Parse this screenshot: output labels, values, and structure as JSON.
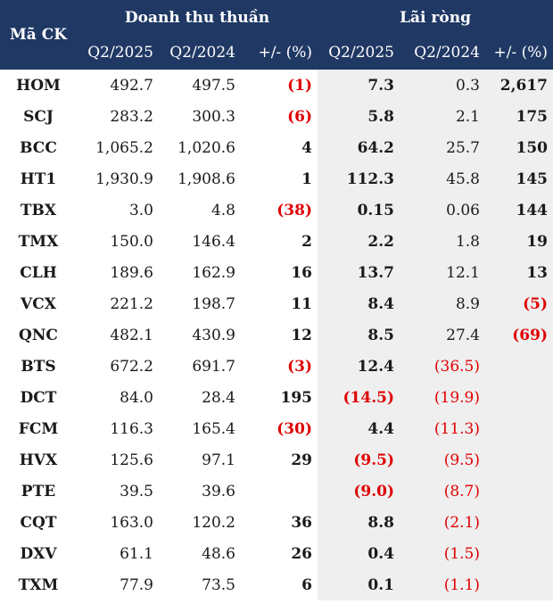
{
  "header": {
    "ticker_label": "Mã CK",
    "revenue_group": "Doanh thu thuần",
    "profit_group": "Lãi ròng",
    "cols": [
      "Q2/2025",
      "Q2/2024",
      "+/- (%)",
      "Q2/2025",
      "Q2/2024",
      "+/- (%)"
    ]
  },
  "colors": {
    "header_bg": "#1f3864",
    "negative": "#e00000",
    "shade": "#efefef"
  },
  "rows": [
    {
      "ticker": "HOM",
      "rev_q2_2025": "492.7",
      "rev_q2_2024": "497.5",
      "rev_change": "(1)",
      "np_q2_2025": "7.3",
      "np_q2_2024": "0.3",
      "np_change": "2,617"
    },
    {
      "ticker": "SCJ",
      "rev_q2_2025": "283.2",
      "rev_q2_2024": "300.3",
      "rev_change": "(6)",
      "np_q2_2025": "5.8",
      "np_q2_2024": "2.1",
      "np_change": "175"
    },
    {
      "ticker": "BCC",
      "rev_q2_2025": "1,065.2",
      "rev_q2_2024": "1,020.6",
      "rev_change": "4",
      "np_q2_2025": "64.2",
      "np_q2_2024": "25.7",
      "np_change": "150"
    },
    {
      "ticker": "HT1",
      "rev_q2_2025": "1,930.9",
      "rev_q2_2024": "1,908.6",
      "rev_change": "1",
      "np_q2_2025": "112.3",
      "np_q2_2024": "45.8",
      "np_change": "145"
    },
    {
      "ticker": "TBX",
      "rev_q2_2025": "3.0",
      "rev_q2_2024": "4.8",
      "rev_change": "(38)",
      "np_q2_2025": "0.15",
      "np_q2_2024": "0.06",
      "np_change": "144"
    },
    {
      "ticker": "TMX",
      "rev_q2_2025": "150.0",
      "rev_q2_2024": "146.4",
      "rev_change": "2",
      "np_q2_2025": "2.2",
      "np_q2_2024": "1.8",
      "np_change": "19"
    },
    {
      "ticker": "CLH",
      "rev_q2_2025": "189.6",
      "rev_q2_2024": "162.9",
      "rev_change": "16",
      "np_q2_2025": "13.7",
      "np_q2_2024": "12.1",
      "np_change": "13"
    },
    {
      "ticker": "VCX",
      "rev_q2_2025": "221.2",
      "rev_q2_2024": "198.7",
      "rev_change": "11",
      "np_q2_2025": "8.4",
      "np_q2_2024": "8.9",
      "np_change": "(5)"
    },
    {
      "ticker": "QNC",
      "rev_q2_2025": "482.1",
      "rev_q2_2024": "430.9",
      "rev_change": "12",
      "np_q2_2025": "8.5",
      "np_q2_2024": "27.4",
      "np_change": "(69)"
    },
    {
      "ticker": "BTS",
      "rev_q2_2025": "672.2",
      "rev_q2_2024": "691.7",
      "rev_change": "(3)",
      "np_q2_2025": "12.4",
      "np_q2_2024": "(36.5)",
      "np_change": ""
    },
    {
      "ticker": "DCT",
      "rev_q2_2025": "84.0",
      "rev_q2_2024": "28.4",
      "rev_change": "195",
      "np_q2_2025": "(14.5)",
      "np_q2_2024": "(19.9)",
      "np_change": ""
    },
    {
      "ticker": "FCM",
      "rev_q2_2025": "116.3",
      "rev_q2_2024": "165.4",
      "rev_change": "(30)",
      "np_q2_2025": "4.4",
      "np_q2_2024": "(11.3)",
      "np_change": ""
    },
    {
      "ticker": "HVX",
      "rev_q2_2025": "125.6",
      "rev_q2_2024": "97.1",
      "rev_change": "29",
      "np_q2_2025": "(9.5)",
      "np_q2_2024": "(9.5)",
      "np_change": ""
    },
    {
      "ticker": "PTE",
      "rev_q2_2025": "39.5",
      "rev_q2_2024": "39.6",
      "rev_change": "",
      "np_q2_2025": "(9.0)",
      "np_q2_2024": "(8.7)",
      "np_change": ""
    },
    {
      "ticker": "CQT",
      "rev_q2_2025": "163.0",
      "rev_q2_2024": "120.2",
      "rev_change": "36",
      "np_q2_2025": "8.8",
      "np_q2_2024": "(2.1)",
      "np_change": ""
    },
    {
      "ticker": "DXV",
      "rev_q2_2025": "61.1",
      "rev_q2_2024": "48.6",
      "rev_change": "26",
      "np_q2_2025": "0.4",
      "np_q2_2024": "(1.5)",
      "np_change": ""
    },
    {
      "ticker": "TXM",
      "rev_q2_2025": "77.9",
      "rev_q2_2024": "73.5",
      "rev_change": "6",
      "np_q2_2025": "0.1",
      "np_q2_2024": "(1.1)",
      "np_change": ""
    }
  ]
}
